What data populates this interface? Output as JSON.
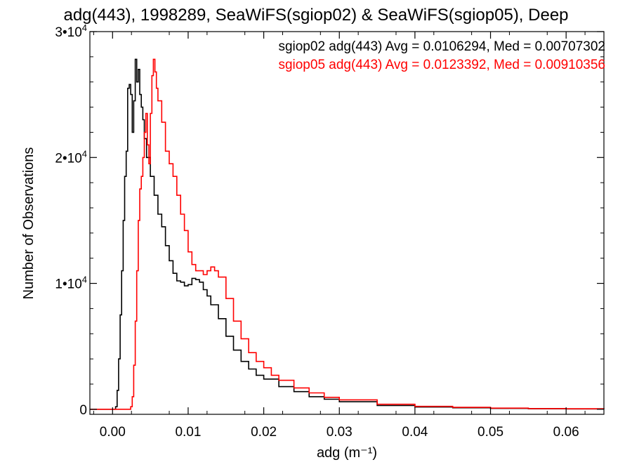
{
  "chart_data": {
    "type": "line",
    "title": "adg(443), 1998289, SeaWiFS(sgiop02) & SeaWiFS(sgiop05), Deep",
    "xlabel": "adg (m⁻¹)",
    "ylabel": "Number of Observations",
    "xlim": [
      -0.003,
      0.065
    ],
    "ylim": [
      -400,
      30000
    ],
    "x_ticks": [
      0.0,
      0.01,
      0.02,
      0.03,
      0.04,
      0.05,
      0.06
    ],
    "x_tick_labels": [
      "0.00",
      "0.01",
      "0.02",
      "0.03",
      "0.04",
      "0.05",
      "0.06"
    ],
    "y_ticks": [
      0,
      10000,
      20000,
      30000
    ],
    "y_tick_labels": [
      {
        "base": "0",
        "exp": ""
      },
      {
        "base": "1•10",
        "exp": "4"
      },
      {
        "base": "2•10",
        "exp": "4"
      },
      {
        "base": "3•10",
        "exp": "4"
      }
    ],
    "grid": false,
    "legend_position": "top-right",
    "series": [
      {
        "name": "sgiop02",
        "color": "#000000",
        "stats_label": "sgiop02 adg(443) Avg = 0.0106294, Med = 0.00707302",
        "points": [
          [
            -0.003,
            0
          ],
          [
            0.0,
            0
          ],
          [
            0.0004,
            200
          ],
          [
            0.0006,
            1500
          ],
          [
            0.0008,
            4000
          ],
          [
            0.001,
            7500
          ],
          [
            0.0012,
            11000
          ],
          [
            0.0014,
            15000
          ],
          [
            0.0016,
            18500
          ],
          [
            0.0018,
            20500
          ],
          [
            0.002,
            25500
          ],
          [
            0.0022,
            25800
          ],
          [
            0.0024,
            25000
          ],
          [
            0.0026,
            22000
          ],
          [
            0.0028,
            24500
          ],
          [
            0.003,
            27800
          ],
          [
            0.0032,
            26000
          ],
          [
            0.0034,
            27000
          ],
          [
            0.0036,
            25000
          ],
          [
            0.0038,
            24000
          ],
          [
            0.004,
            23000
          ],
          [
            0.0042,
            21500
          ],
          [
            0.0045,
            20000
          ],
          [
            0.005,
            18500
          ],
          [
            0.0055,
            17000
          ],
          [
            0.006,
            15500
          ],
          [
            0.0065,
            14500
          ],
          [
            0.007,
            13000
          ],
          [
            0.0075,
            11800
          ],
          [
            0.008,
            10800
          ],
          [
            0.0085,
            10200
          ],
          [
            0.009,
            10100
          ],
          [
            0.0095,
            9800
          ],
          [
            0.01,
            9900
          ],
          [
            0.0105,
            10400
          ],
          [
            0.011,
            10300
          ],
          [
            0.0115,
            10100
          ],
          [
            0.012,
            9500
          ],
          [
            0.0125,
            9000
          ],
          [
            0.013,
            8300
          ],
          [
            0.014,
            7200
          ],
          [
            0.015,
            5800
          ],
          [
            0.016,
            4700
          ],
          [
            0.017,
            3800
          ],
          [
            0.018,
            3200
          ],
          [
            0.019,
            2700
          ],
          [
            0.02,
            2400
          ],
          [
            0.022,
            1800
          ],
          [
            0.024,
            1400
          ],
          [
            0.026,
            1000
          ],
          [
            0.028,
            800
          ],
          [
            0.03,
            600
          ],
          [
            0.035,
            300
          ],
          [
            0.04,
            180
          ],
          [
            0.045,
            120
          ],
          [
            0.05,
            70
          ],
          [
            0.055,
            40
          ],
          [
            0.06,
            30
          ],
          [
            0.065,
            20
          ]
        ]
      },
      {
        "name": "sgiop05",
        "color": "#ff0000",
        "stats_label": "sgiop05 adg(443) Avg = 0.0123392, Med = 0.00910356",
        "points": [
          [
            -0.003,
            0
          ],
          [
            0.0,
            0
          ],
          [
            0.002,
            0
          ],
          [
            0.0024,
            200
          ],
          [
            0.0026,
            1000
          ],
          [
            0.0028,
            3500
          ],
          [
            0.003,
            7000
          ],
          [
            0.0032,
            11000
          ],
          [
            0.0034,
            15000
          ],
          [
            0.0036,
            17500
          ],
          [
            0.0038,
            18500
          ],
          [
            0.004,
            20000
          ],
          [
            0.0042,
            22000
          ],
          [
            0.0044,
            23500
          ],
          [
            0.0046,
            21000
          ],
          [
            0.0048,
            19500
          ],
          [
            0.005,
            23500
          ],
          [
            0.0052,
            26500
          ],
          [
            0.0054,
            27800
          ],
          [
            0.0056,
            26800
          ],
          [
            0.0058,
            25500
          ],
          [
            0.006,
            24500
          ],
          [
            0.0065,
            22800
          ],
          [
            0.007,
            20500
          ],
          [
            0.0075,
            19500
          ],
          [
            0.008,
            18500
          ],
          [
            0.0085,
            17000
          ],
          [
            0.009,
            15500
          ],
          [
            0.0095,
            14200
          ],
          [
            0.01,
            12500
          ],
          [
            0.0105,
            11500
          ],
          [
            0.011,
            11000
          ],
          [
            0.0115,
            11000
          ],
          [
            0.012,
            10700
          ],
          [
            0.0125,
            11000
          ],
          [
            0.013,
            11300
          ],
          [
            0.0135,
            11000
          ],
          [
            0.014,
            10500
          ],
          [
            0.015,
            8800
          ],
          [
            0.016,
            7000
          ],
          [
            0.017,
            5600
          ],
          [
            0.018,
            4500
          ],
          [
            0.019,
            3800
          ],
          [
            0.02,
            3300
          ],
          [
            0.021,
            2700
          ],
          [
            0.022,
            2300
          ],
          [
            0.024,
            1700
          ],
          [
            0.026,
            1300
          ],
          [
            0.028,
            950
          ],
          [
            0.03,
            750
          ],
          [
            0.035,
            400
          ],
          [
            0.04,
            230
          ],
          [
            0.045,
            150
          ],
          [
            0.05,
            90
          ],
          [
            0.055,
            55
          ],
          [
            0.06,
            40
          ],
          [
            0.065,
            30
          ]
        ]
      }
    ]
  }
}
